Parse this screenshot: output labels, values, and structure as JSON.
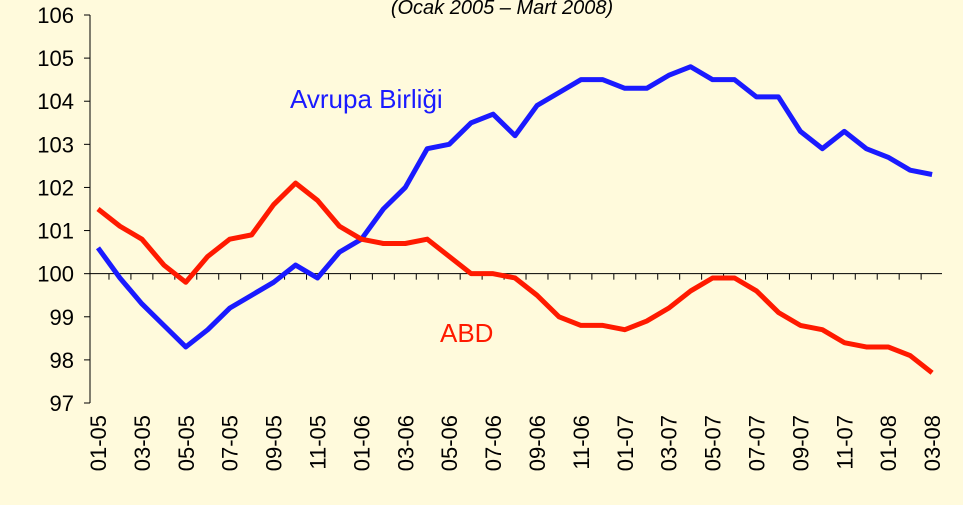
{
  "chart_data": {
    "type": "line",
    "subtitle": "(Ocak 2005 – Mart 2008)",
    "categories": [
      "01-05",
      null,
      "03-05",
      null,
      "05-05",
      null,
      "07-05",
      null,
      "09-05",
      null,
      "11-05",
      null,
      "01-06",
      null,
      "03-06",
      null,
      "05-06",
      null,
      "07-06",
      null,
      "09-06",
      null,
      "11-06",
      null,
      "01-07",
      null,
      "03-07",
      null,
      "05-07",
      null,
      "07-07",
      null,
      "09-07",
      null,
      "11-07",
      null,
      "01-08",
      null,
      "03-08"
    ],
    "series": [
      {
        "name": "Avrupa Birliği",
        "color": "#1a1aff",
        "values": [
          100.6,
          99.9,
          99.3,
          98.8,
          98.3,
          98.7,
          99.2,
          99.5,
          99.8,
          100.2,
          99.9,
          100.5,
          100.8,
          101.5,
          102.0,
          102.9,
          103.0,
          103.5,
          103.7,
          103.2,
          103.9,
          104.2,
          104.5,
          104.5,
          104.3,
          104.3,
          104.6,
          104.8,
          104.5,
          104.5,
          104.1,
          104.1,
          103.3,
          102.9,
          103.3,
          102.9,
          102.7,
          102.4,
          102.3
        ]
      },
      {
        "name": "ABD",
        "color": "#ff1a00",
        "values": [
          101.5,
          101.1,
          100.8,
          100.2,
          99.8,
          100.4,
          100.8,
          100.9,
          101.6,
          102.1,
          101.7,
          101.1,
          100.8,
          100.7,
          100.7,
          100.8,
          100.4,
          100.0,
          100.0,
          99.9,
          99.5,
          99.0,
          98.8,
          98.8,
          98.7,
          98.9,
          99.2,
          99.6,
          99.9,
          99.9,
          99.6,
          99.1,
          98.8,
          98.7,
          98.4,
          98.3,
          98.3,
          98.1,
          97.7
        ]
      }
    ],
    "ylim": [
      97,
      106
    ],
    "yticks": [
      97,
      98,
      99,
      100,
      101,
      102,
      103,
      104,
      105,
      106
    ],
    "xaxis_crosses": 100,
    "grid": false
  }
}
